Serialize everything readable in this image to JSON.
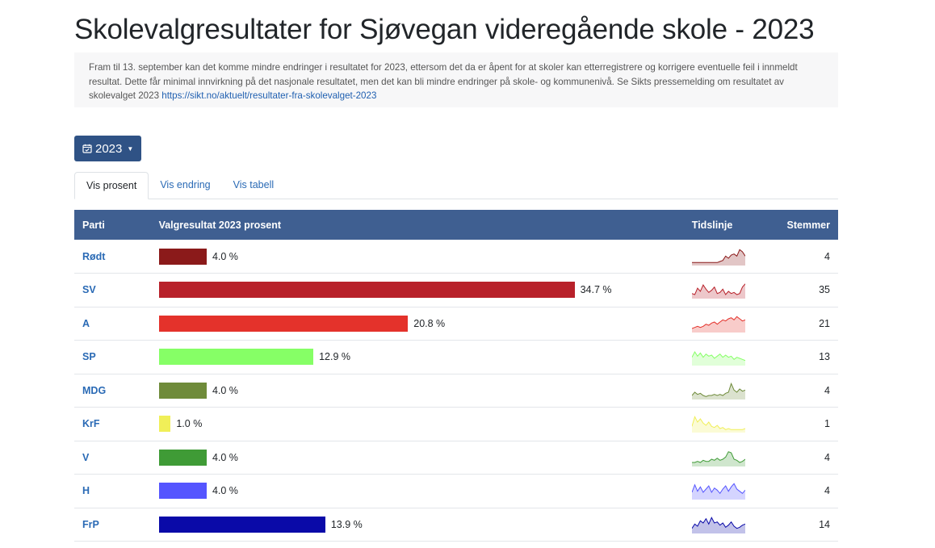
{
  "page": {
    "title": "Skolevalgresultater for Sjøvegan videregående skole - 2023"
  },
  "notice": {
    "text": "Fram til 13. september kan det komme mindre endringer i resultatet for 2023, ettersom det da er åpent for at skoler kan etterregistrere og korrigere eventuelle feil i innmeldt resultat. Dette får minimal innvirkning på det nasjonale resultatet, men det kan bli mindre endringer på skole- og kommunenivå. Se Sikts pressemelding om resultatet av skolevalget 2023 ",
    "link_text": "https://sikt.no/aktuelt/resultater-fra-skolevalget-2023"
  },
  "year_selector": {
    "label": "2023",
    "icon": "calendar-check-icon"
  },
  "tabs": [
    {
      "label": "Vis prosent",
      "active": true
    },
    {
      "label": "Vis endring",
      "active": false
    },
    {
      "label": "Vis tabell",
      "active": false
    }
  ],
  "table": {
    "headers": {
      "party": "Parti",
      "result": "Valgresultat 2023 prosent",
      "timeline": "Tidslinje",
      "votes": "Stemmer"
    },
    "rows": [
      {
        "party": "Rødt",
        "percent": 4.0,
        "percent_label": "4.0 %",
        "votes": "4",
        "color": "#8b1a1a",
        "spark": [
          2,
          2,
          2,
          2,
          2,
          2,
          2,
          2,
          2,
          2,
          3,
          4,
          8,
          6,
          9,
          10,
          8,
          14,
          12,
          8
        ]
      },
      {
        "party": "SV",
        "percent": 34.7,
        "percent_label": "34.7 %",
        "votes": "35",
        "color": "#b8212a",
        "spark": [
          4,
          3,
          9,
          6,
          12,
          8,
          5,
          7,
          10,
          4,
          5,
          8,
          3,
          6,
          4,
          5,
          3,
          4,
          10,
          13
        ]
      },
      {
        "party": "A",
        "percent": 20.8,
        "percent_label": "20.8 %",
        "votes": "21",
        "color": "#e4322b",
        "spark": [
          3,
          4,
          5,
          4,
          5,
          7,
          6,
          8,
          9,
          7,
          9,
          11,
          10,
          12,
          13,
          11,
          14,
          12,
          10,
          11
        ]
      },
      {
        "party": "SP",
        "percent": 12.9,
        "percent_label": "12.9 %",
        "votes": "13",
        "color": "#86ff66",
        "spark": [
          7,
          12,
          8,
          11,
          7,
          10,
          8,
          9,
          6,
          8,
          10,
          7,
          9,
          7,
          8,
          5,
          7,
          6,
          5,
          4
        ]
      },
      {
        "party": "MDG",
        "percent": 4.0,
        "percent_label": "4.0 %",
        "votes": "4",
        "color": "#6f8b3a",
        "spark": [
          3,
          6,
          4,
          5,
          3,
          2,
          3,
          3,
          4,
          3,
          4,
          3,
          5,
          6,
          14,
          8,
          6,
          9,
          7,
          8
        ]
      },
      {
        "party": "KrF",
        "percent": 1.0,
        "percent_label": "1.0 %",
        "votes": "1",
        "color": "#f0ef58",
        "spark": [
          5,
          14,
          9,
          12,
          8,
          6,
          9,
          5,
          4,
          6,
          3,
          4,
          2,
          3,
          2,
          2,
          2,
          2,
          2,
          3
        ]
      },
      {
        "party": "V",
        "percent": 4.0,
        "percent_label": "4.0 %",
        "votes": "4",
        "color": "#3f9b36",
        "spark": [
          3,
          3,
          4,
          3,
          5,
          4,
          4,
          6,
          5,
          7,
          5,
          6,
          8,
          13,
          12,
          6,
          5,
          3,
          4,
          6
        ]
      },
      {
        "party": "H",
        "percent": 4.0,
        "percent_label": "4.0 %",
        "votes": "4",
        "color": "#5555ff",
        "spark": [
          6,
          13,
          7,
          11,
          6,
          9,
          12,
          6,
          10,
          8,
          5,
          9,
          12,
          7,
          11,
          14,
          9,
          7,
          5,
          8
        ]
      },
      {
        "party": "FrP",
        "percent": 13.9,
        "percent_label": "13.9 %",
        "votes": "14",
        "color": "#0a0aa8",
        "spark": [
          4,
          8,
          6,
          11,
          9,
          13,
          8,
          14,
          9,
          10,
          7,
          9,
          5,
          7,
          10,
          6,
          4,
          5,
          7,
          8
        ]
      }
    ]
  }
}
